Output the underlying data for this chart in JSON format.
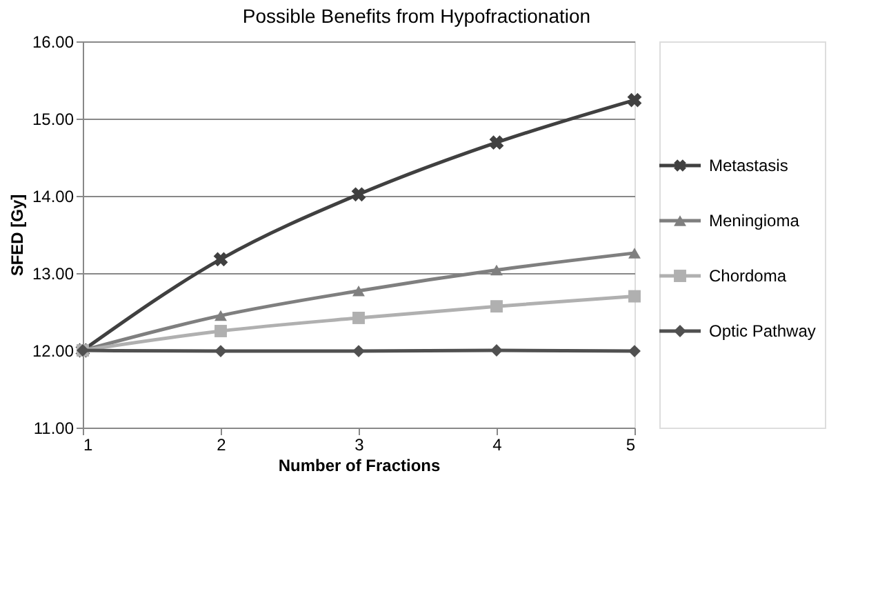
{
  "chart_data": {
    "type": "line",
    "title": "Possible Benefits from Hypofractionation",
    "xlabel": "Number of Fractions",
    "ylabel": "SFED [Gy]",
    "categories": [
      "1",
      "2",
      "3",
      "4",
      "5"
    ],
    "ylim": [
      11,
      16
    ],
    "yticks": [
      {
        "value": 11,
        "label": "11.00"
      },
      {
        "value": 12,
        "label": "12.00"
      },
      {
        "value": 13,
        "label": "13.00"
      },
      {
        "value": 14,
        "label": "14.00"
      },
      {
        "value": 15,
        "label": "15.00"
      },
      {
        "value": 16,
        "label": "16.00"
      }
    ],
    "grid": "y",
    "legend": "right",
    "line_style": "solid",
    "series": [
      {
        "name": "Metastasis",
        "color": "#404040",
        "marker": "cross",
        "values": [
          12.0,
          13.18,
          14.02,
          14.69,
          15.24
        ]
      },
      {
        "name": "Meningioma",
        "color": "#7f7f7f",
        "marker": "triangle",
        "values": [
          12.0,
          12.45,
          12.77,
          13.04,
          13.26
        ]
      },
      {
        "name": "Chordoma",
        "color": "#b0b0b0",
        "marker": "square",
        "values": [
          12.0,
          12.25,
          12.42,
          12.57,
          12.7
        ]
      },
      {
        "name": "Optic Pathway",
        "color": "#505050",
        "marker": "diamond",
        "values": [
          12.0,
          11.99,
          11.99,
          12.0,
          11.99
        ]
      }
    ]
  }
}
